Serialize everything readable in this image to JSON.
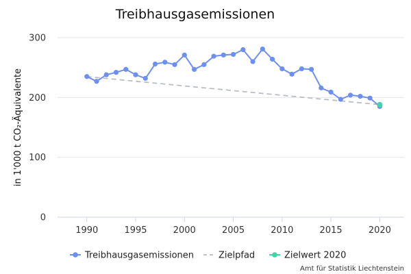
{
  "chart_data": {
    "type": "line",
    "title": "Treibhausgasemissionen",
    "ylabel": "in 1'000 t CO₂-Äquivalente",
    "xlabel": "",
    "xlim": [
      1987,
      2022.5
    ],
    "ylim": [
      0,
      300
    ],
    "x_ticks": [
      1990,
      1995,
      2000,
      2005,
      2010,
      2015,
      2020
    ],
    "y_ticks": [
      0,
      100,
      200,
      300
    ],
    "grid": "horizontal",
    "legend_position": "bottom",
    "credit": "Amt für Statistik Liechtenstein",
    "series": [
      {
        "name": "Treibhausgasemissionen",
        "style": "line-markers",
        "color": "#6d8ff0",
        "x": [
          1990,
          1991,
          1992,
          1993,
          1994,
          1995,
          1996,
          1997,
          1998,
          1999,
          2000,
          2001,
          2002,
          2003,
          2004,
          2005,
          2006,
          2007,
          2008,
          2009,
          2010,
          2011,
          2012,
          2013,
          2014,
          2015,
          2016,
          2017,
          2018,
          2019,
          2020
        ],
        "values": [
          235,
          227,
          238,
          242,
          247,
          238,
          232,
          256,
          259,
          255,
          271,
          247,
          255,
          269,
          271,
          272,
          280,
          260,
          281,
          264,
          248,
          239,
          248,
          247,
          216,
          209,
          197,
          204,
          202,
          199,
          185
        ]
      },
      {
        "name": "Zielpfad",
        "style": "dashed",
        "color": "#b8bec4",
        "x": [
          1990,
          2020
        ],
        "values": [
          235,
          188
        ]
      },
      {
        "name": "Zielwert 2020",
        "style": "marker",
        "color": "#3dd6a8",
        "x": [
          2020
        ],
        "values": [
          188
        ]
      }
    ]
  }
}
